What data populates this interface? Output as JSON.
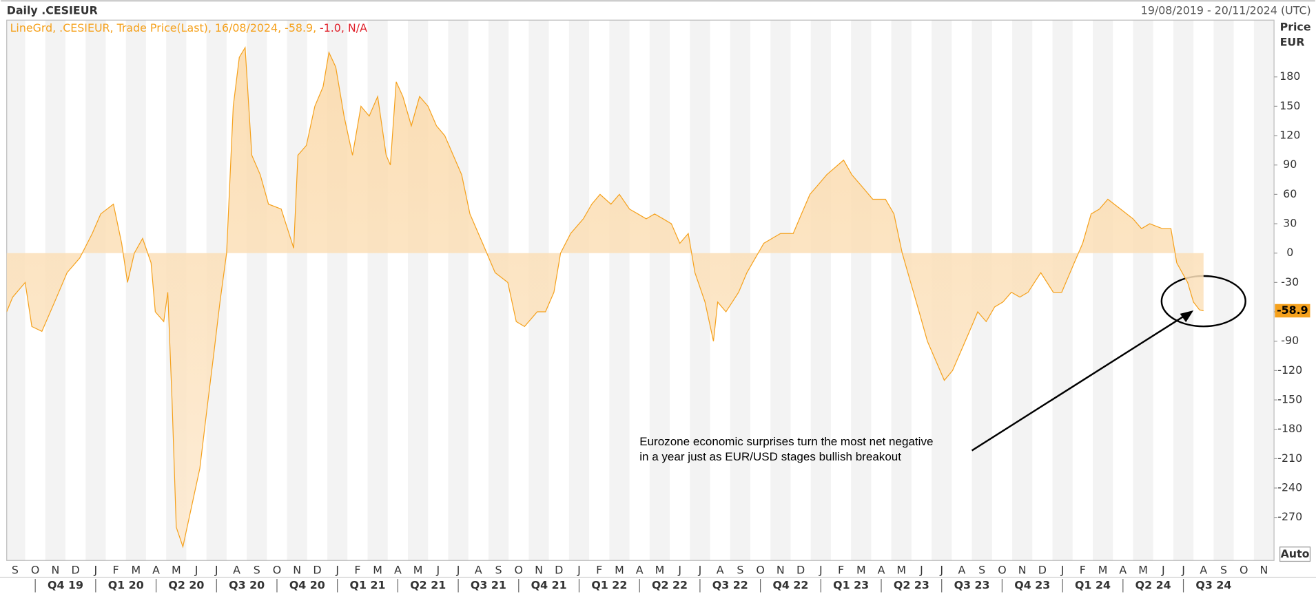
{
  "header": {
    "title": "Daily .CESIEUR",
    "range": "19/08/2019 - 20/11/2024 (UTC)"
  },
  "legend": {
    "text": "LineGrd, .CESIEUR, Trade Price(Last), 16/08/2024, -58.9,",
    "change": "-1.0, N/A"
  },
  "axis_title": {
    "line1": "Price",
    "line2": "EUR"
  },
  "button": "Auto",
  "annotation": {
    "line1": "Eurozone economic surprises turn the most net negative",
    "line2": "in a year just as EUR/USD stages bullish breakout"
  },
  "chart_data": {
    "type": "area",
    "color": "#f5a11c",
    "x": [
      0.08,
      0.38,
      1,
      1.33,
      1.83,
      2.46,
      3.08,
      3.71,
      4.33,
      4.75,
      5.38,
      5.79,
      6.08,
      6.42,
      6.83,
      7.25,
      7.46,
      7.88,
      8.08,
      8.29,
      8.5,
      8.83,
      9.25,
      9.67,
      10.08,
      10.38,
      10.67,
      11,
      11.33,
      11.63,
      11.92,
      12.25,
      12.67,
      13.08,
      13.71,
      14.33,
      14.54,
      14.96,
      15.38,
      15.79,
      16.08,
      16.42,
      16.83,
      17.25,
      17.67,
      18.08,
      18.5,
      18.92,
      19.13,
      19.42,
      19.75,
      20.17,
      20.58,
      21,
      21.42,
      21.83,
      22.25,
      22.67,
      23.08,
      23.71,
      24.33,
      24.96,
      25.38,
      25.79,
      26.42,
      26.83,
      27.25,
      27.58,
      28.08,
      28.71,
      29.13,
      29.54,
      30.08,
      30.5,
      31,
      31.42,
      31.83,
      32.25,
      32.67,
      33.08,
      33.5,
      33.92,
      34.25,
      34.75,
      35.17,
      35.38,
      35.79,
      36.42,
      36.83,
      37.25,
      37.67,
      38.08,
      38.5,
      39.13,
      39.54,
      39.96,
      40.38,
      40.79,
      41.63,
      42.04,
      42.46,
      43.08,
      43.71,
      44.13,
      44.54,
      44.96,
      45.38,
      45.79,
      46.21,
      46.63,
      47.04,
      47.46,
      47.88,
      48.29,
      48.71,
      49.13,
      49.54,
      49.96,
      50.38,
      50.79,
      51.42,
      52.04,
      52.46,
      53.08,
      53.5,
      53.92,
      54.33,
      54.75,
      55.38,
      56,
      56.42,
      56.83,
      57.46,
      57.88,
      58.17,
      58.71,
      59,
      59.3,
      59.5
    ],
    "series": [
      {
        "name": ".CESIEUR",
        "values": [
          -60,
          -45,
          -30,
          -75,
          -80,
          -50,
          -20,
          -5,
          20,
          40,
          50,
          10,
          -30,
          0,
          15,
          -10,
          -60,
          -70,
          -40,
          -150,
          -280,
          -300,
          -260,
          -220,
          -150,
          -100,
          -50,
          0,
          150,
          200,
          210,
          100,
          80,
          50,
          45,
          5,
          100,
          110,
          150,
          170,
          205,
          190,
          140,
          100,
          150,
          140,
          160,
          100,
          90,
          175,
          160,
          130,
          160,
          150,
          130,
          120,
          100,
          80,
          40,
          10,
          -20,
          -30,
          -70,
          -75,
          -60,
          -60,
          -40,
          0,
          20,
          35,
          50,
          60,
          50,
          60,
          45,
          40,
          35,
          40,
          35,
          30,
          10,
          20,
          -20,
          -50,
          -90,
          -50,
          -60,
          -40,
          -20,
          -5,
          10,
          15,
          20,
          20,
          40,
          60,
          70,
          80,
          95,
          80,
          70,
          55,
          55,
          40,
          0,
          -30,
          -60,
          -90,
          -110,
          -130,
          -120,
          -100,
          -80,
          -60,
          -70,
          -55,
          -50,
          -40,
          -45,
          -40,
          -20,
          -40,
          -40,
          -10,
          10,
          40,
          45,
          55,
          45,
          35,
          25,
          30,
          25,
          25,
          -10,
          -30,
          -50,
          -58,
          -58.9
        ]
      }
    ],
    "xlim": [
      0,
      63
    ],
    "ylim": [
      -314,
      238
    ],
    "yticks": [
      -270,
      -240,
      -210,
      -180,
      -150,
      -120,
      -90,
      -60,
      -30,
      0,
      30,
      60,
      90,
      120,
      150,
      180
    ],
    "xticks": [
      {
        "value": 0.5,
        "label": "S"
      },
      {
        "value": 1.5,
        "label": "O"
      },
      {
        "value": 2.5,
        "label": "N"
      },
      {
        "value": 3.5,
        "label": "D"
      },
      {
        "value": 4.5,
        "label": "J"
      },
      {
        "value": 5.5,
        "label": "F"
      },
      {
        "value": 6.5,
        "label": "M"
      },
      {
        "value": 7.5,
        "label": "A"
      },
      {
        "value": 8.5,
        "label": "M"
      },
      {
        "value": 9.5,
        "label": "J"
      },
      {
        "value": 10.5,
        "label": "J"
      },
      {
        "value": 11.5,
        "label": "A"
      },
      {
        "value": 12.5,
        "label": "S"
      },
      {
        "value": 13.5,
        "label": "O"
      },
      {
        "value": 14.5,
        "label": "N"
      },
      {
        "value": 15.5,
        "label": "D"
      },
      {
        "value": 16.5,
        "label": "J"
      },
      {
        "value": 17.5,
        "label": "F"
      },
      {
        "value": 18.5,
        "label": "M"
      },
      {
        "value": 19.5,
        "label": "A"
      },
      {
        "value": 20.5,
        "label": "M"
      },
      {
        "value": 21.5,
        "label": "J"
      },
      {
        "value": 22.5,
        "label": "J"
      },
      {
        "value": 23.5,
        "label": "A"
      },
      {
        "value": 24.5,
        "label": "S"
      },
      {
        "value": 25.5,
        "label": "O"
      },
      {
        "value": 26.5,
        "label": "N"
      },
      {
        "value": 27.5,
        "label": "D"
      },
      {
        "value": 28.5,
        "label": "J"
      },
      {
        "value": 29.5,
        "label": "F"
      },
      {
        "value": 30.5,
        "label": "M"
      },
      {
        "value": 31.5,
        "label": "A"
      },
      {
        "value": 32.5,
        "label": "M"
      },
      {
        "value": 33.5,
        "label": "J"
      },
      {
        "value": 34.5,
        "label": "J"
      },
      {
        "value": 35.5,
        "label": "A"
      },
      {
        "value": 36.5,
        "label": "S"
      },
      {
        "value": 37.5,
        "label": "O"
      },
      {
        "value": 38.5,
        "label": "N"
      },
      {
        "value": 39.5,
        "label": "D"
      },
      {
        "value": 40.5,
        "label": "J"
      },
      {
        "value": 41.5,
        "label": "F"
      },
      {
        "value": 42.5,
        "label": "M"
      },
      {
        "value": 43.5,
        "label": "A"
      },
      {
        "value": 44.5,
        "label": "M"
      },
      {
        "value": 45.5,
        "label": "J"
      },
      {
        "value": 46.5,
        "label": "J"
      },
      {
        "value": 47.5,
        "label": "A"
      },
      {
        "value": 48.5,
        "label": "S"
      },
      {
        "value": 49.5,
        "label": "O"
      },
      {
        "value": 50.5,
        "label": "N"
      },
      {
        "value": 51.5,
        "label": "D"
      },
      {
        "value": 52.5,
        "label": "J"
      },
      {
        "value": 53.5,
        "label": "F"
      },
      {
        "value": 54.5,
        "label": "M"
      },
      {
        "value": 55.5,
        "label": "A"
      },
      {
        "value": 56.5,
        "label": "M"
      },
      {
        "value": 57.5,
        "label": "J"
      },
      {
        "value": 58.5,
        "label": "J"
      },
      {
        "value": 59.5,
        "label": "A"
      },
      {
        "value": 60.5,
        "label": "S"
      },
      {
        "value": 61.5,
        "label": "O"
      },
      {
        "value": 62.5,
        "label": "N"
      }
    ],
    "x2ticks": [
      {
        "value": 3,
        "label": "Q4 19"
      },
      {
        "value": 6,
        "label": "Q1 20"
      },
      {
        "value": 9,
        "label": "Q2 20"
      },
      {
        "value": 12,
        "label": "Q3 20"
      },
      {
        "value": 15,
        "label": "Q4 20"
      },
      {
        "value": 18,
        "label": "Q1 21"
      },
      {
        "value": 21,
        "label": "Q2 21"
      },
      {
        "value": 24,
        "label": "Q3 21"
      },
      {
        "value": 27,
        "label": "Q4 21"
      },
      {
        "value": 30,
        "label": "Q1 22"
      },
      {
        "value": 33,
        "label": "Q2 22"
      },
      {
        "value": 36,
        "label": "Q3 22"
      },
      {
        "value": 39,
        "label": "Q4 22"
      },
      {
        "value": 42,
        "label": "Q1 23"
      },
      {
        "value": 45,
        "label": "Q2 23"
      },
      {
        "value": 48,
        "label": "Q3 23"
      },
      {
        "value": 51,
        "label": "Q4 23"
      },
      {
        "value": 54,
        "label": "Q1 24"
      },
      {
        "value": 57,
        "label": "Q2 24"
      },
      {
        "value": 60,
        "label": "Q3 24"
      }
    ]
  }
}
